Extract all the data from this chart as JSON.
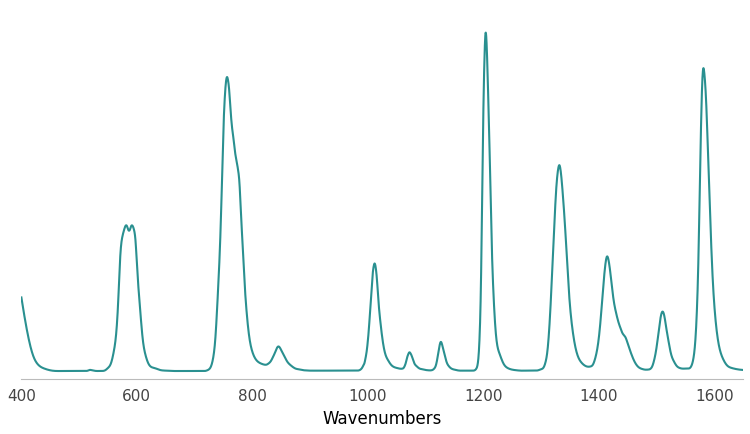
{
  "line_color": "#2a9090",
  "line_width": 1.5,
  "background_color": "#ffffff",
  "xlabel": "Wavenumbers",
  "xlabel_fontsize": 12,
  "xlim": [
    400,
    1650
  ],
  "ylim": [
    -0.02,
    1.08
  ],
  "xticks": [
    400,
    600,
    800,
    1000,
    1200,
    1400,
    1600
  ],
  "control_points": [
    [
      400,
      0.22
    ],
    [
      410,
      0.12
    ],
    [
      420,
      0.05
    ],
    [
      430,
      0.02
    ],
    [
      440,
      0.01
    ],
    [
      450,
      0.005
    ],
    [
      460,
      0.003
    ],
    [
      470,
      0.003
    ],
    [
      480,
      0.003
    ],
    [
      490,
      0.003
    ],
    [
      500,
      0.003
    ],
    [
      505,
      0.003
    ],
    [
      510,
      0.003
    ],
    [
      515,
      0.004
    ],
    [
      518,
      0.006
    ],
    [
      520,
      0.006
    ],
    [
      522,
      0.005
    ],
    [
      525,
      0.004
    ],
    [
      530,
      0.003
    ],
    [
      535,
      0.003
    ],
    [
      540,
      0.003
    ],
    [
      545,
      0.005
    ],
    [
      550,
      0.012
    ],
    [
      555,
      0.025
    ],
    [
      560,
      0.06
    ],
    [
      565,
      0.13
    ],
    [
      568,
      0.22
    ],
    [
      570,
      0.3
    ],
    [
      572,
      0.36
    ],
    [
      575,
      0.4
    ],
    [
      578,
      0.42
    ],
    [
      580,
      0.43
    ],
    [
      583,
      0.43
    ],
    [
      585,
      0.42
    ],
    [
      588,
      0.42
    ],
    [
      590,
      0.43
    ],
    [
      593,
      0.43
    ],
    [
      595,
      0.42
    ],
    [
      598,
      0.38
    ],
    [
      600,
      0.32
    ],
    [
      605,
      0.2
    ],
    [
      610,
      0.1
    ],
    [
      615,
      0.05
    ],
    [
      620,
      0.025
    ],
    [
      630,
      0.012
    ],
    [
      640,
      0.006
    ],
    [
      650,
      0.004
    ],
    [
      660,
      0.003
    ],
    [
      670,
      0.003
    ],
    [
      680,
      0.003
    ],
    [
      690,
      0.003
    ],
    [
      700,
      0.003
    ],
    [
      710,
      0.003
    ],
    [
      718,
      0.003
    ],
    [
      722,
      0.005
    ],
    [
      725,
      0.008
    ],
    [
      728,
      0.015
    ],
    [
      732,
      0.04
    ],
    [
      736,
      0.1
    ],
    [
      740,
      0.22
    ],
    [
      745,
      0.42
    ],
    [
      748,
      0.6
    ],
    [
      750,
      0.72
    ],
    [
      752,
      0.8
    ],
    [
      754,
      0.85
    ],
    [
      756,
      0.87
    ],
    [
      758,
      0.86
    ],
    [
      760,
      0.83
    ],
    [
      762,
      0.78
    ],
    [
      765,
      0.72
    ],
    [
      768,
      0.68
    ],
    [
      770,
      0.65
    ],
    [
      773,
      0.62
    ],
    [
      775,
      0.6
    ],
    [
      778,
      0.55
    ],
    [
      780,
      0.48
    ],
    [
      783,
      0.38
    ],
    [
      786,
      0.28
    ],
    [
      790,
      0.18
    ],
    [
      795,
      0.1
    ],
    [
      800,
      0.06
    ],
    [
      805,
      0.04
    ],
    [
      810,
      0.03
    ],
    [
      815,
      0.025
    ],
    [
      820,
      0.022
    ],
    [
      825,
      0.022
    ],
    [
      828,
      0.025
    ],
    [
      832,
      0.032
    ],
    [
      836,
      0.045
    ],
    [
      840,
      0.06
    ],
    [
      843,
      0.072
    ],
    [
      846,
      0.075
    ],
    [
      849,
      0.068
    ],
    [
      852,
      0.058
    ],
    [
      856,
      0.045
    ],
    [
      860,
      0.032
    ],
    [
      865,
      0.022
    ],
    [
      870,
      0.015
    ],
    [
      875,
      0.01
    ],
    [
      880,
      0.008
    ],
    [
      885,
      0.006
    ],
    [
      890,
      0.005
    ],
    [
      900,
      0.004
    ],
    [
      910,
      0.004
    ],
    [
      920,
      0.004
    ],
    [
      930,
      0.004
    ],
    [
      940,
      0.004
    ],
    [
      950,
      0.004
    ],
    [
      960,
      0.004
    ],
    [
      965,
      0.004
    ],
    [
      970,
      0.004
    ],
    [
      975,
      0.004
    ],
    [
      980,
      0.004
    ],
    [
      985,
      0.005
    ],
    [
      988,
      0.008
    ],
    [
      990,
      0.012
    ],
    [
      992,
      0.018
    ],
    [
      994,
      0.025
    ],
    [
      996,
      0.04
    ],
    [
      998,
      0.06
    ],
    [
      1000,
      0.09
    ],
    [
      1002,
      0.13
    ],
    [
      1004,
      0.18
    ],
    [
      1006,
      0.23
    ],
    [
      1008,
      0.28
    ],
    [
      1010,
      0.31
    ],
    [
      1012,
      0.32
    ],
    [
      1014,
      0.305
    ],
    [
      1016,
      0.27
    ],
    [
      1018,
      0.22
    ],
    [
      1022,
      0.145
    ],
    [
      1026,
      0.09
    ],
    [
      1030,
      0.055
    ],
    [
      1035,
      0.035
    ],
    [
      1040,
      0.022
    ],
    [
      1045,
      0.015
    ],
    [
      1050,
      0.012
    ],
    [
      1055,
      0.01
    ],
    [
      1060,
      0.01
    ],
    [
      1062,
      0.012
    ],
    [
      1064,
      0.018
    ],
    [
      1066,
      0.028
    ],
    [
      1068,
      0.042
    ],
    [
      1070,
      0.052
    ],
    [
      1072,
      0.058
    ],
    [
      1074,
      0.055
    ],
    [
      1076,
      0.048
    ],
    [
      1078,
      0.038
    ],
    [
      1080,
      0.028
    ],
    [
      1084,
      0.018
    ],
    [
      1090,
      0.01
    ],
    [
      1095,
      0.008
    ],
    [
      1100,
      0.006
    ],
    [
      1105,
      0.005
    ],
    [
      1110,
      0.005
    ],
    [
      1112,
      0.006
    ],
    [
      1115,
      0.01
    ],
    [
      1118,
      0.02
    ],
    [
      1120,
      0.035
    ],
    [
      1122,
      0.055
    ],
    [
      1124,
      0.075
    ],
    [
      1126,
      0.088
    ],
    [
      1128,
      0.085
    ],
    [
      1130,
      0.072
    ],
    [
      1133,
      0.052
    ],
    [
      1136,
      0.032
    ],
    [
      1140,
      0.018
    ],
    [
      1145,
      0.01
    ],
    [
      1150,
      0.007
    ],
    [
      1155,
      0.005
    ],
    [
      1160,
      0.004
    ],
    [
      1165,
      0.004
    ],
    [
      1170,
      0.004
    ],
    [
      1175,
      0.004
    ],
    [
      1180,
      0.004
    ],
    [
      1185,
      0.005
    ],
    [
      1188,
      0.01
    ],
    [
      1190,
      0.02
    ],
    [
      1192,
      0.05
    ],
    [
      1194,
      0.12
    ],
    [
      1196,
      0.26
    ],
    [
      1198,
      0.5
    ],
    [
      1200,
      0.75
    ],
    [
      1202,
      0.92
    ],
    [
      1204,
      1.0
    ],
    [
      1206,
      0.96
    ],
    [
      1208,
      0.85
    ],
    [
      1211,
      0.65
    ],
    [
      1214,
      0.42
    ],
    [
      1218,
      0.22
    ],
    [
      1222,
      0.11
    ],
    [
      1228,
      0.055
    ],
    [
      1235,
      0.025
    ],
    [
      1242,
      0.012
    ],
    [
      1250,
      0.007
    ],
    [
      1258,
      0.005
    ],
    [
      1265,
      0.004
    ],
    [
      1272,
      0.004
    ],
    [
      1280,
      0.004
    ],
    [
      1288,
      0.004
    ],
    [
      1295,
      0.005
    ],
    [
      1300,
      0.008
    ],
    [
      1305,
      0.015
    ],
    [
      1308,
      0.03
    ],
    [
      1311,
      0.06
    ],
    [
      1314,
      0.12
    ],
    [
      1317,
      0.21
    ],
    [
      1320,
      0.32
    ],
    [
      1323,
      0.43
    ],
    [
      1326,
      0.53
    ],
    [
      1329,
      0.59
    ],
    [
      1332,
      0.61
    ],
    [
      1335,
      0.58
    ],
    [
      1338,
      0.52
    ],
    [
      1342,
      0.42
    ],
    [
      1346,
      0.3
    ],
    [
      1350,
      0.2
    ],
    [
      1355,
      0.12
    ],
    [
      1360,
      0.07
    ],
    [
      1365,
      0.042
    ],
    [
      1370,
      0.028
    ],
    [
      1375,
      0.02
    ],
    [
      1380,
      0.016
    ],
    [
      1385,
      0.016
    ],
    [
      1388,
      0.018
    ],
    [
      1390,
      0.022
    ],
    [
      1393,
      0.035
    ],
    [
      1396,
      0.055
    ],
    [
      1399,
      0.085
    ],
    [
      1402,
      0.13
    ],
    [
      1405,
      0.19
    ],
    [
      1408,
      0.255
    ],
    [
      1411,
      0.31
    ],
    [
      1414,
      0.34
    ],
    [
      1417,
      0.33
    ],
    [
      1420,
      0.295
    ],
    [
      1423,
      0.25
    ],
    [
      1426,
      0.21
    ],
    [
      1430,
      0.175
    ],
    [
      1434,
      0.148
    ],
    [
      1438,
      0.128
    ],
    [
      1441,
      0.115
    ],
    [
      1444,
      0.108
    ],
    [
      1447,
      0.1
    ],
    [
      1450,
      0.085
    ],
    [
      1455,
      0.06
    ],
    [
      1460,
      0.038
    ],
    [
      1465,
      0.022
    ],
    [
      1470,
      0.013
    ],
    [
      1475,
      0.009
    ],
    [
      1480,
      0.007
    ],
    [
      1485,
      0.007
    ],
    [
      1490,
      0.01
    ],
    [
      1493,
      0.018
    ],
    [
      1496,
      0.035
    ],
    [
      1499,
      0.06
    ],
    [
      1502,
      0.095
    ],
    [
      1505,
      0.135
    ],
    [
      1508,
      0.168
    ],
    [
      1511,
      0.178
    ],
    [
      1514,
      0.162
    ],
    [
      1517,
      0.13
    ],
    [
      1521,
      0.09
    ],
    [
      1525,
      0.055
    ],
    [
      1530,
      0.032
    ],
    [
      1535,
      0.018
    ],
    [
      1540,
      0.012
    ],
    [
      1545,
      0.01
    ],
    [
      1550,
      0.01
    ],
    [
      1555,
      0.01
    ],
    [
      1558,
      0.012
    ],
    [
      1561,
      0.02
    ],
    [
      1564,
      0.04
    ],
    [
      1567,
      0.085
    ],
    [
      1570,
      0.18
    ],
    [
      1573,
      0.36
    ],
    [
      1575,
      0.54
    ],
    [
      1577,
      0.71
    ],
    [
      1579,
      0.84
    ],
    [
      1581,
      0.895
    ],
    [
      1583,
      0.88
    ],
    [
      1586,
      0.8
    ],
    [
      1589,
      0.66
    ],
    [
      1593,
      0.46
    ],
    [
      1597,
      0.29
    ],
    [
      1602,
      0.16
    ],
    [
      1608,
      0.08
    ],
    [
      1615,
      0.04
    ],
    [
      1622,
      0.02
    ],
    [
      1630,
      0.012
    ],
    [
      1640,
      0.008
    ],
    [
      1650,
      0.006
    ]
  ]
}
